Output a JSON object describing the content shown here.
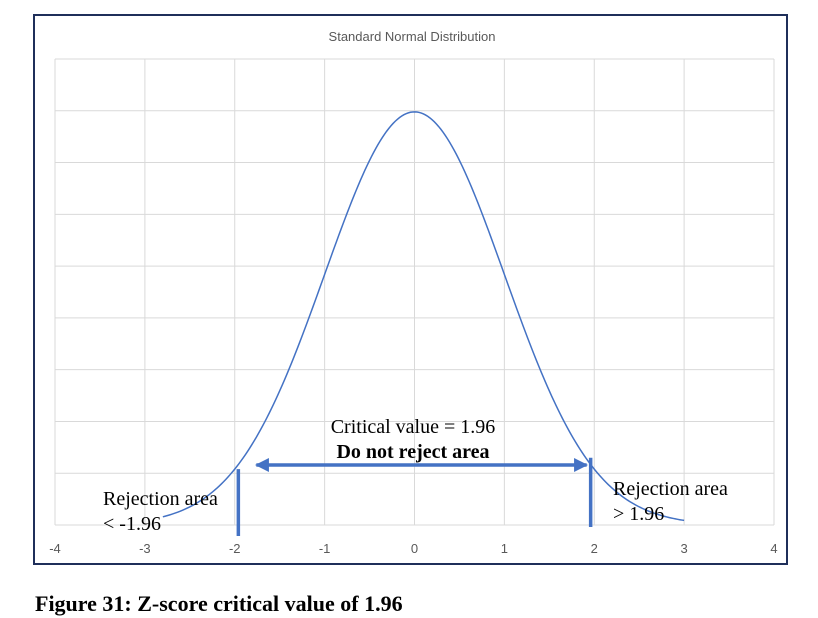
{
  "caption": "Figure 31: Z-score critical value of 1.96",
  "chart_data": {
    "type": "line",
    "title": "Standard Normal Distribution",
    "xlabel": "",
    "ylabel": "",
    "xlim": [
      -4,
      4
    ],
    "ylim": [
      0,
      0.45
    ],
    "x_ticks": [
      "-4",
      "-3",
      "-2",
      "-1",
      "0",
      "1",
      "2",
      "3",
      "4"
    ],
    "y_ticks": [
      0,
      0.05,
      0.1,
      0.15,
      0.2,
      0.25,
      0.3,
      0.35,
      0.4,
      0.45
    ],
    "y_tick_labels_shown": false,
    "grid": true,
    "series": [
      {
        "x": [
          -2.8,
          -2.6,
          -2.4,
          -2.2,
          -2.0,
          -1.8,
          -1.6,
          -1.4,
          -1.2,
          -1.0,
          -0.8,
          -0.6,
          -0.4,
          -0.2,
          0.0,
          0.2,
          0.4,
          0.6,
          0.8,
          1.0,
          1.2,
          1.4,
          1.6,
          1.8,
          2.0,
          2.2,
          2.4,
          2.6,
          2.8,
          3.0
        ],
        "y": [
          0.0079,
          0.0136,
          0.0224,
          0.0355,
          0.054,
          0.079,
          0.1109,
          0.1497,
          0.1942,
          0.242,
          0.2897,
          0.3332,
          0.3683,
          0.391,
          0.3989,
          0.391,
          0.3683,
          0.3332,
          0.2897,
          0.242,
          0.1942,
          0.1497,
          0.1109,
          0.079,
          0.054,
          0.0355,
          0.0224,
          0.0136,
          0.0079,
          0.0044
        ],
        "color": "#4472c4"
      }
    ],
    "critical_lines": [
      -1.96,
      1.96
    ],
    "line_color": "#4472c4",
    "annotations": {
      "critical_value": "Critical value = 1.96",
      "do_not_reject": "Do not reject area",
      "left_rejection_line1": "Rejection area",
      "left_rejection_line2": "< -1.96",
      "right_rejection_line1": "Rejection area",
      "right_rejection_line2": "> 1.96"
    }
  }
}
